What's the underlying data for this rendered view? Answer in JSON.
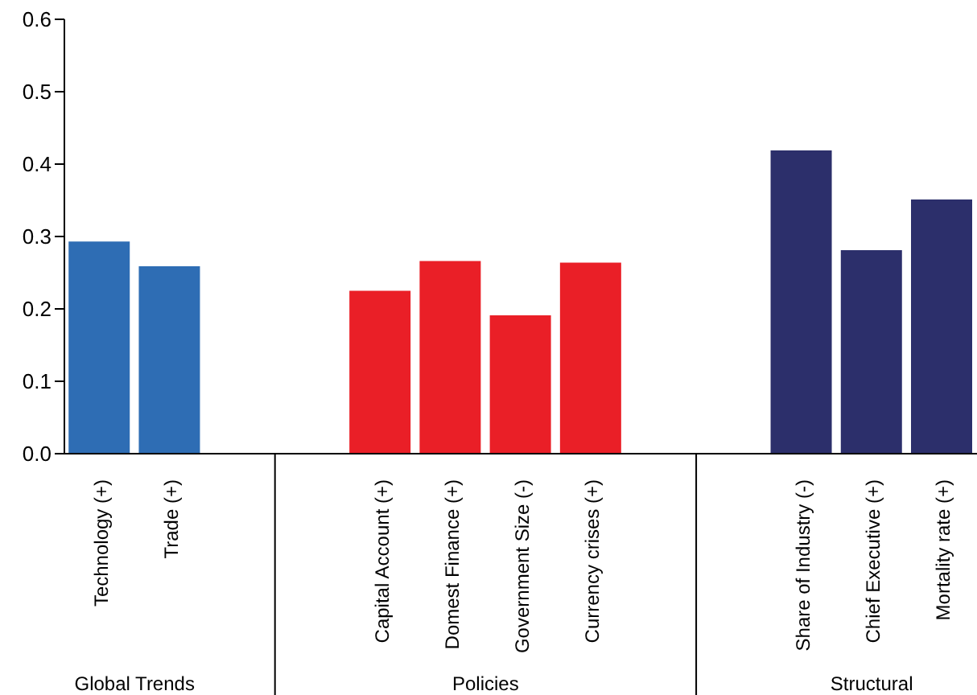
{
  "chart_data": {
    "type": "bar",
    "categories": [
      "Technology (+)",
      "Trade (+)",
      null,
      null,
      "Capital Account (+)",
      "Domest Finance (+)",
      "Government Size (-)",
      "Currency crises (+)",
      null,
      null,
      "Share of Industry (-)",
      "Chief Executive (+)",
      "Mortality rate (+)"
    ],
    "values": [
      0.293,
      0.259,
      null,
      null,
      0.225,
      0.266,
      0.191,
      0.264,
      null,
      null,
      0.419,
      0.281,
      0.351
    ],
    "colors": [
      "#2e6db4",
      "#2e6db4",
      null,
      null,
      "#ea1f27",
      "#ea1f27",
      "#ea1f27",
      "#ea1f27",
      null,
      null,
      "#2c2f6b",
      "#2c2f6b",
      "#2c2f6b"
    ],
    "ylim": [
      0,
      0.6
    ],
    "yticks": [
      {
        "value": 0,
        "label": "0.0"
      },
      {
        "value": 0.1,
        "label": "0.1"
      },
      {
        "value": 0.2,
        "label": "0.2"
      },
      {
        "value": 0.3,
        "label": "0.3"
      },
      {
        "value": 0.4,
        "label": "0.4"
      },
      {
        "value": 0.5,
        "label": "0.5"
      },
      {
        "value": 0.6,
        "label": "0.6"
      }
    ],
    "grid": false,
    "annotations": [
      "Global Trends",
      "Policies",
      "Structural"
    ]
  }
}
